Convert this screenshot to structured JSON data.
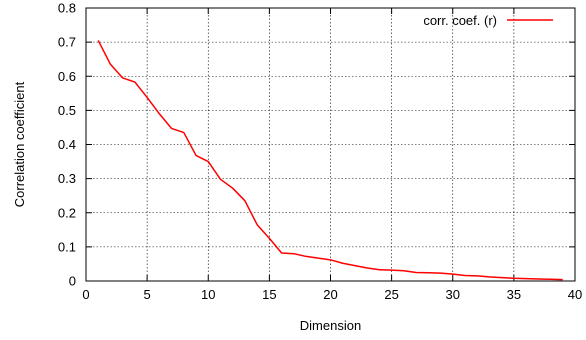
{
  "chart_data": {
    "type": "line",
    "title": "",
    "xlabel": "Dimension",
    "ylabel": "Correlation coefficient",
    "xlim": [
      0,
      40
    ],
    "ylim": [
      0,
      0.8
    ],
    "xticks": [
      0,
      5,
      10,
      15,
      20,
      25,
      30,
      35,
      40
    ],
    "yticks": [
      0,
      0.1,
      0.2,
      0.3,
      0.4,
      0.5,
      0.6,
      0.7,
      0.8
    ],
    "xtick_labels": [
      "0",
      "5",
      "10",
      "15",
      "20",
      "25",
      "30",
      "35",
      "40"
    ],
    "ytick_labels": [
      "0",
      "0.1",
      "0.2",
      "0.3",
      "0.4",
      "0.5",
      "0.6",
      "0.7",
      "0.8"
    ],
    "grid": true,
    "legend_position": "top-right",
    "series": [
      {
        "name": "corr. coef. (r)",
        "color": "#ff0000",
        "x": [
          1,
          2,
          3,
          4,
          5,
          6,
          7,
          8,
          9,
          10,
          11,
          12,
          13,
          14,
          15,
          16,
          17,
          18,
          19,
          20,
          21,
          22,
          23,
          24,
          25,
          26,
          27,
          28,
          29,
          30,
          31,
          32,
          33,
          34,
          35,
          36,
          37,
          38,
          39
        ],
        "y": [
          0.705,
          0.635,
          0.595,
          0.583,
          0.538,
          0.49,
          0.447,
          0.435,
          0.368,
          0.35,
          0.298,
          0.272,
          0.235,
          0.165,
          0.125,
          0.082,
          0.08,
          0.072,
          0.067,
          0.062,
          0.052,
          0.045,
          0.038,
          0.033,
          0.032,
          0.03,
          0.025,
          0.024,
          0.023,
          0.02,
          0.016,
          0.015,
          0.012,
          0.01,
          0.008,
          0.007,
          0.006,
          0.005,
          0.004
        ]
      }
    ]
  }
}
